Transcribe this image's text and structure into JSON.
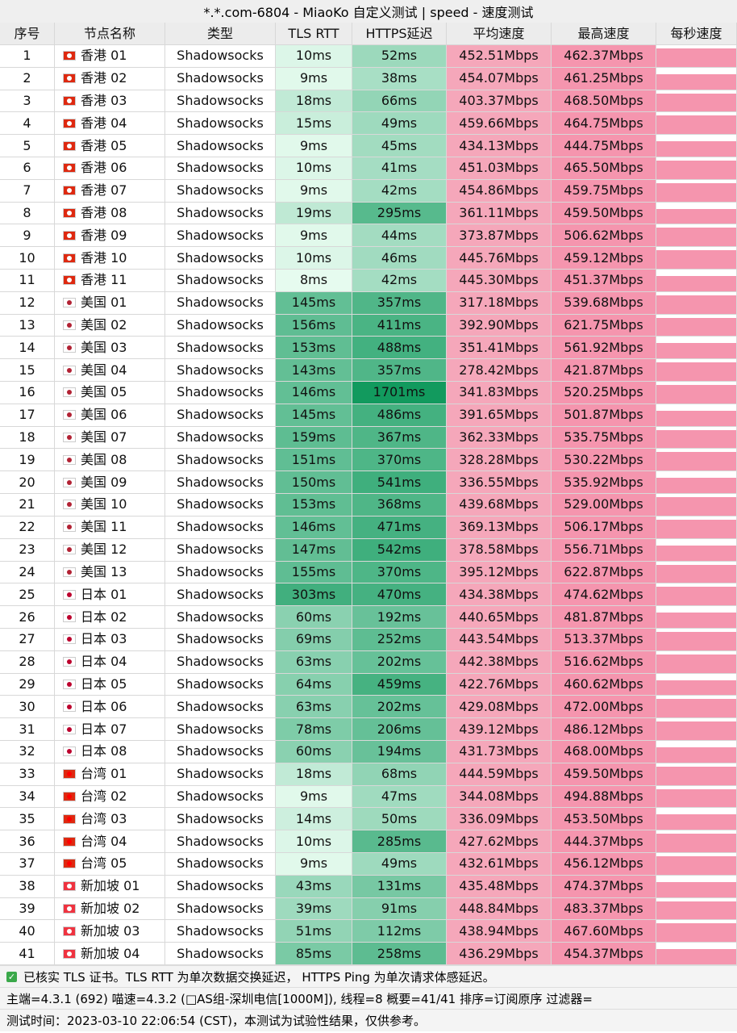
{
  "title": "*.*.com-6804 - MiaoKo 自定义测试 | speed - 速度测试",
  "table": {
    "header": [
      "序号",
      "节点名称",
      "类型",
      "TLS RTT",
      "HTTPS延迟",
      "平均速度",
      "最高速度",
      "每秒速度"
    ],
    "rows": [
      [
        "1",
        "香港 01",
        "Shadowsocks",
        "10ms",
        "52ms",
        "452.51Mbps",
        "462.37Mbps"
      ],
      [
        "2",
        "香港 02",
        "Shadowsocks",
        "9ms",
        "38ms",
        "454.07Mbps",
        "461.25Mbps"
      ],
      [
        "3",
        "香港 03",
        "Shadowsocks",
        "18ms",
        "66ms",
        "403.37Mbps",
        "468.50Mbps"
      ],
      [
        "4",
        "香港 04",
        "Shadowsocks",
        "15ms",
        "49ms",
        "459.66Mbps",
        "464.75Mbps"
      ],
      [
        "5",
        "香港 05",
        "Shadowsocks",
        "9ms",
        "45ms",
        "434.13Mbps",
        "444.75Mbps"
      ],
      [
        "6",
        "香港 06",
        "Shadowsocks",
        "10ms",
        "41ms",
        "451.03Mbps",
        "465.50Mbps"
      ],
      [
        "7",
        "香港 07",
        "Shadowsocks",
        "9ms",
        "42ms",
        "454.86Mbps",
        "459.75Mbps"
      ],
      [
        "8",
        "香港 08",
        "Shadowsocks",
        "19ms",
        "295ms",
        "361.11Mbps",
        "459.50Mbps"
      ],
      [
        "9",
        "香港 09",
        "Shadowsocks",
        "9ms",
        "44ms",
        "373.87Mbps",
        "506.62Mbps"
      ],
      [
        "10",
        "香港 10",
        "Shadowsocks",
        "10ms",
        "46ms",
        "445.76Mbps",
        "459.12Mbps"
      ],
      [
        "11",
        "香港 11",
        "Shadowsocks",
        "8ms",
        "42ms",
        "445.30Mbps",
        "451.37Mbps"
      ],
      [
        "12",
        "美国 01",
        "Shadowsocks",
        "145ms",
        "357ms",
        "317.18Mbps",
        "539.68Mbps"
      ],
      [
        "13",
        "美国 02",
        "Shadowsocks",
        "156ms",
        "411ms",
        "392.90Mbps",
        "621.75Mbps"
      ],
      [
        "14",
        "美国 03",
        "Shadowsocks",
        "153ms",
        "488ms",
        "351.41Mbps",
        "561.92Mbps"
      ],
      [
        "15",
        "美国 04",
        "Shadowsocks",
        "143ms",
        "357ms",
        "278.42Mbps",
        "421.87Mbps"
      ],
      [
        "16",
        "美国 05",
        "Shadowsocks",
        "146ms",
        "1701ms",
        "341.83Mbps",
        "520.25Mbps"
      ],
      [
        "17",
        "美国 06",
        "Shadowsocks",
        "145ms",
        "486ms",
        "391.65Mbps",
        "501.87Mbps"
      ],
      [
        "18",
        "美国 07",
        "Shadowsocks",
        "159ms",
        "367ms",
        "362.33Mbps",
        "535.75Mbps"
      ],
      [
        "19",
        "美国 08",
        "Shadowsocks",
        "151ms",
        "370ms",
        "328.28Mbps",
        "530.22Mbps"
      ],
      [
        "20",
        "美国 09",
        "Shadowsocks",
        "150ms",
        "541ms",
        "336.55Mbps",
        "535.92Mbps"
      ],
      [
        "21",
        "美国 10",
        "Shadowsocks",
        "153ms",
        "368ms",
        "439.68Mbps",
        "529.00Mbps"
      ],
      [
        "22",
        "美国 11",
        "Shadowsocks",
        "146ms",
        "471ms",
        "369.13Mbps",
        "506.17Mbps"
      ],
      [
        "23",
        "美国 12",
        "Shadowsocks",
        "147ms",
        "542ms",
        "378.58Mbps",
        "556.71Mbps"
      ],
      [
        "24",
        "美国 13",
        "Shadowsocks",
        "155ms",
        "370ms",
        "395.12Mbps",
        "622.87Mbps"
      ],
      [
        "25",
        "日本 01",
        "Shadowsocks",
        "303ms",
        "470ms",
        "434.38Mbps",
        "474.62Mbps"
      ],
      [
        "26",
        "日本 02",
        "Shadowsocks",
        "60ms",
        "192ms",
        "440.65Mbps",
        "481.87Mbps"
      ],
      [
        "27",
        "日本 03",
        "Shadowsocks",
        "69ms",
        "252ms",
        "443.54Mbps",
        "513.37Mbps"
      ],
      [
        "28",
        "日本 04",
        "Shadowsocks",
        "63ms",
        "202ms",
        "442.38Mbps",
        "516.62Mbps"
      ],
      [
        "29",
        "日本 05",
        "Shadowsocks",
        "64ms",
        "459ms",
        "422.76Mbps",
        "460.62Mbps"
      ],
      [
        "30",
        "日本 06",
        "Shadowsocks",
        "63ms",
        "202ms",
        "429.08Mbps",
        "472.00Mbps"
      ],
      [
        "31",
        "日本 07",
        "Shadowsocks",
        "78ms",
        "206ms",
        "439.12Mbps",
        "486.12Mbps"
      ],
      [
        "32",
        "日本 08",
        "Shadowsocks",
        "60ms",
        "194ms",
        "431.73Mbps",
        "468.00Mbps"
      ],
      [
        "33",
        "台湾 01",
        "Shadowsocks",
        "18ms",
        "68ms",
        "444.59Mbps",
        "459.50Mbps"
      ],
      [
        "34",
        "台湾 02",
        "Shadowsocks",
        "9ms",
        "47ms",
        "344.08Mbps",
        "494.88Mbps"
      ],
      [
        "35",
        "台湾 03",
        "Shadowsocks",
        "14ms",
        "50ms",
        "336.09Mbps",
        "453.50Mbps"
      ],
      [
        "36",
        "台湾 04",
        "Shadowsocks",
        "10ms",
        "285ms",
        "427.62Mbps",
        "444.37Mbps"
      ],
      [
        "37",
        "台湾 05",
        "Shadowsocks",
        "9ms",
        "49ms",
        "432.61Mbps",
        "456.12Mbps"
      ],
      [
        "38",
        "新加坡 01",
        "Shadowsocks",
        "43ms",
        "131ms",
        "435.48Mbps",
        "474.37Mbps"
      ],
      [
        "39",
        "新加坡 02",
        "Shadowsocks",
        "39ms",
        "91ms",
        "448.84Mbps",
        "483.37Mbps"
      ],
      [
        "40",
        "新加坡 03",
        "Shadowsocks",
        "51ms",
        "112ms",
        "438.94Mbps",
        "467.60Mbps"
      ],
      [
        "41",
        "新加坡 04",
        "Shadowsocks",
        "85ms",
        "258ms",
        "436.29Mbps",
        "454.37Mbps"
      ]
    ]
  },
  "footer": [
    "已核实 TLS 证书。TLS RTT 为单次数据交换延迟， HTTPS Ping 为单次请求体感延迟。",
    "主端=4.3.1 (692) 喵速=4.3.2 (□AS组-深圳电信[1000M]), 线程=8 概要=41/41 排序=订阅原序 过滤器=",
    "测试时间：2023-03-10 22:06:54 (CST)，本测试为试验性结果，仅供参考。"
  ]
}
